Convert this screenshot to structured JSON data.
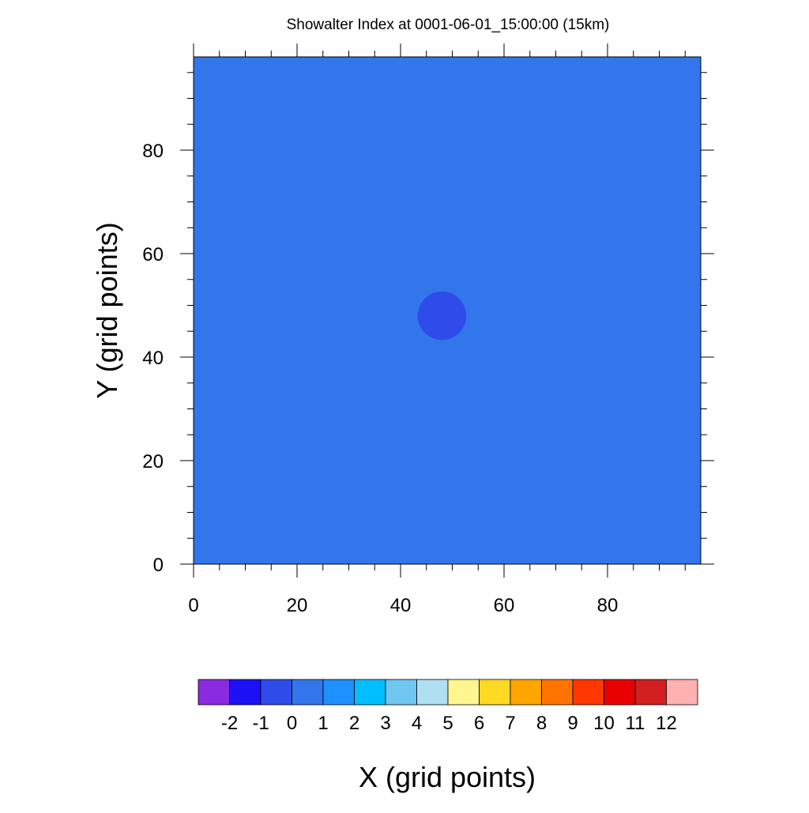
{
  "chart_data": {
    "type": "heatmap",
    "title": "Showalter Index at 0001-06-01_15:00:00 (15km)",
    "xlabel": "X (grid points)",
    "ylabel": "Y (grid points)",
    "xlim": [
      0,
      98
    ],
    "ylim": [
      0,
      98
    ],
    "x_ticks": [
      0,
      20,
      40,
      60,
      80
    ],
    "y_ticks": [
      0,
      20,
      40,
      60,
      80
    ],
    "x_tick_labels": [
      "0",
      "20",
      "40",
      "60",
      "80"
    ],
    "y_tick_labels": [
      "0",
      "20",
      "40",
      "60",
      "80"
    ],
    "field": {
      "background_level": "0 to 1",
      "background_color": "#3376eb",
      "features": [
        {
          "shape": "circle",
          "center_x": 48,
          "center_y": 48,
          "radius_grid_points": 4.7,
          "level": "-1 to 0",
          "color": "#2f4ceb"
        }
      ]
    },
    "colorbar": {
      "orientation": "horizontal",
      "levels": [
        "-2",
        "-1",
        "0",
        "1",
        "2",
        "3",
        "4",
        "5",
        "6",
        "7",
        "8",
        "9",
        "10",
        "11",
        "12"
      ],
      "colors": [
        "#8a2be2",
        "#1c10f5",
        "#2f4ceb",
        "#3376eb",
        "#1e90ff",
        "#00bfff",
        "#6fc6f0",
        "#b0dff2",
        "#fff68f",
        "#ffd923",
        "#ffa500",
        "#ff7400",
        "#ff3700",
        "#e80000",
        "#d21f1f",
        "#ffb0b0"
      ]
    }
  }
}
